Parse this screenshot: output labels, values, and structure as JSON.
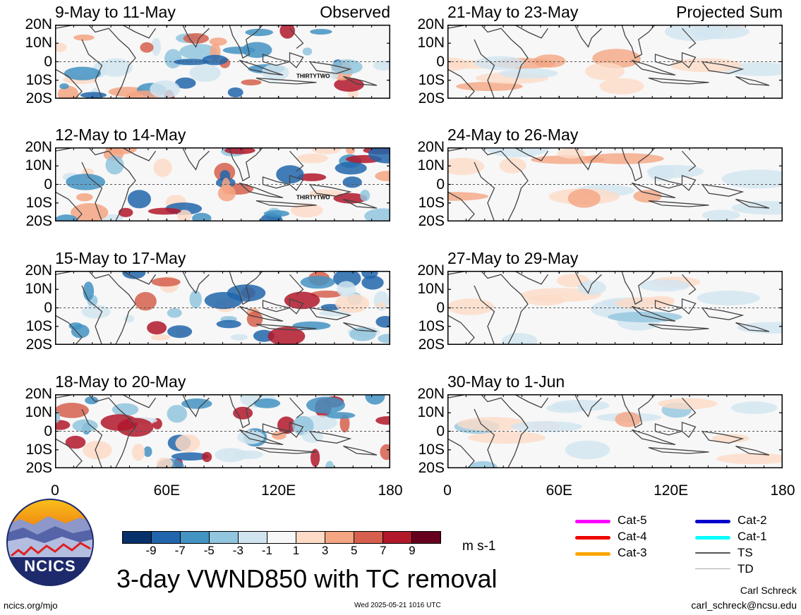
{
  "panels": [
    {
      "label": "9-May to 11-May",
      "tag": "Observed",
      "storm": "THIRTYTWO"
    },
    {
      "label": "21-May to 23-May",
      "tag": "Projected Sum",
      "storm": ""
    },
    {
      "label": "12-May to 14-May",
      "tag": "",
      "storm": "THIRTYTWO"
    },
    {
      "label": "24-May to 26-May",
      "tag": "",
      "storm": ""
    },
    {
      "label": "15-May to 17-May",
      "tag": "",
      "storm": ""
    },
    {
      "label": "27-May to 29-May",
      "tag": "",
      "storm": ""
    },
    {
      "label": "18-May to 20-May",
      "tag": "",
      "storm": ""
    },
    {
      "label": "30-May to 1-Jun",
      "tag": "",
      "storm": ""
    }
  ],
  "y_axis_labels": [
    "20N",
    "10N",
    "0",
    "10S",
    "20S"
  ],
  "x_axis_labels": [
    "0",
    "60E",
    "120E",
    "180"
  ],
  "colorbar": {
    "colors": [
      "#08306b",
      "#2166ac",
      "#4393c3",
      "#92c5de",
      "#d1e5f0",
      "#f7f7f7",
      "#fddbc7",
      "#f4a582",
      "#d6604d",
      "#b2182b",
      "#67001f"
    ],
    "ticks": [
      "-9",
      "-7",
      "-5",
      "-3",
      "-1",
      "1",
      "3",
      "5",
      "7",
      "9"
    ],
    "units": "m s-1"
  },
  "legend": [
    {
      "label": "Cat-5",
      "color": "#ff00ff"
    },
    {
      "label": "Cat-4",
      "color": "#ee0000"
    },
    {
      "label": "Cat-3",
      "color": "#ffa500"
    },
    {
      "label": "Cat-2",
      "color": "#0000cc"
    },
    {
      "label": "Cat-1",
      "color": "#00ffff"
    },
    {
      "label": "TS",
      "color": "#555555"
    },
    {
      "label": "TD",
      "color": "#aaaaaa"
    }
  ],
  "main_title": "3-day VWND850 with TC removal",
  "logo_text": "NCICS",
  "footer_left": "ncics.org/mjo",
  "footer_center": "Wed 2025-05-21 1016 UTC",
  "author": "Carl Schreck",
  "email": "carl_schreck@ncsu.edu"
}
